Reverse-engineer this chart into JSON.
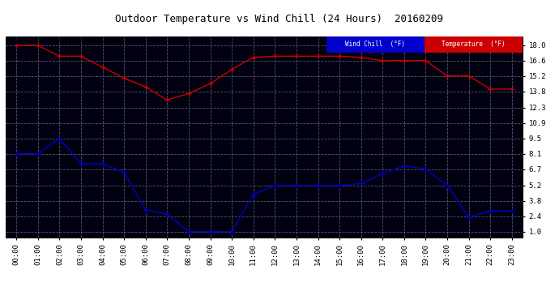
{
  "title": "Outdoor Temperature vs Wind Chill (24 Hours)  20160209",
  "x_labels": [
    "00:00",
    "01:00",
    "02:00",
    "03:00",
    "04:00",
    "05:00",
    "06:00",
    "07:00",
    "08:00",
    "09:00",
    "10:00",
    "11:00",
    "12:00",
    "13:00",
    "14:00",
    "15:00",
    "16:00",
    "17:00",
    "18:00",
    "19:00",
    "20:00",
    "21:00",
    "22:00",
    "23:00"
  ],
  "y_ticks": [
    1.0,
    2.4,
    3.8,
    5.2,
    6.7,
    8.1,
    9.5,
    10.9,
    12.3,
    13.8,
    15.2,
    16.6,
    18.0
  ],
  "temperature_data": [
    18.0,
    18.0,
    17.0,
    17.0,
    16.0,
    15.0,
    14.2,
    13.0,
    13.6,
    14.5,
    15.8,
    16.9,
    17.0,
    17.0,
    17.0,
    17.0,
    16.9,
    16.6,
    16.6,
    16.6,
    15.2,
    15.2,
    14.0,
    14.0
  ],
  "wind_chill_data": [
    8.1,
    8.1,
    9.5,
    7.2,
    7.2,
    6.4,
    3.0,
    2.6,
    1.0,
    1.0,
    1.0,
    4.4,
    5.2,
    5.2,
    5.2,
    5.2,
    5.4,
    6.3,
    7.0,
    6.7,
    5.2,
    2.3,
    2.9,
    2.9
  ],
  "temp_color": "#cc0000",
  "wind_chill_color": "#0000cc",
  "plot_bg_color": "#000010",
  "fig_bg_color": "#ffffff",
  "grid_color": "#555577",
  "legend_wind_chill_bg": "#0000cc",
  "legend_temp_bg": "#cc0000",
  "legend_text_color": "#ffffff",
  "ylim_min": 0.5,
  "ylim_max": 18.8,
  "marker_color_temp": "#000000",
  "marker_color_wind": "#000000"
}
